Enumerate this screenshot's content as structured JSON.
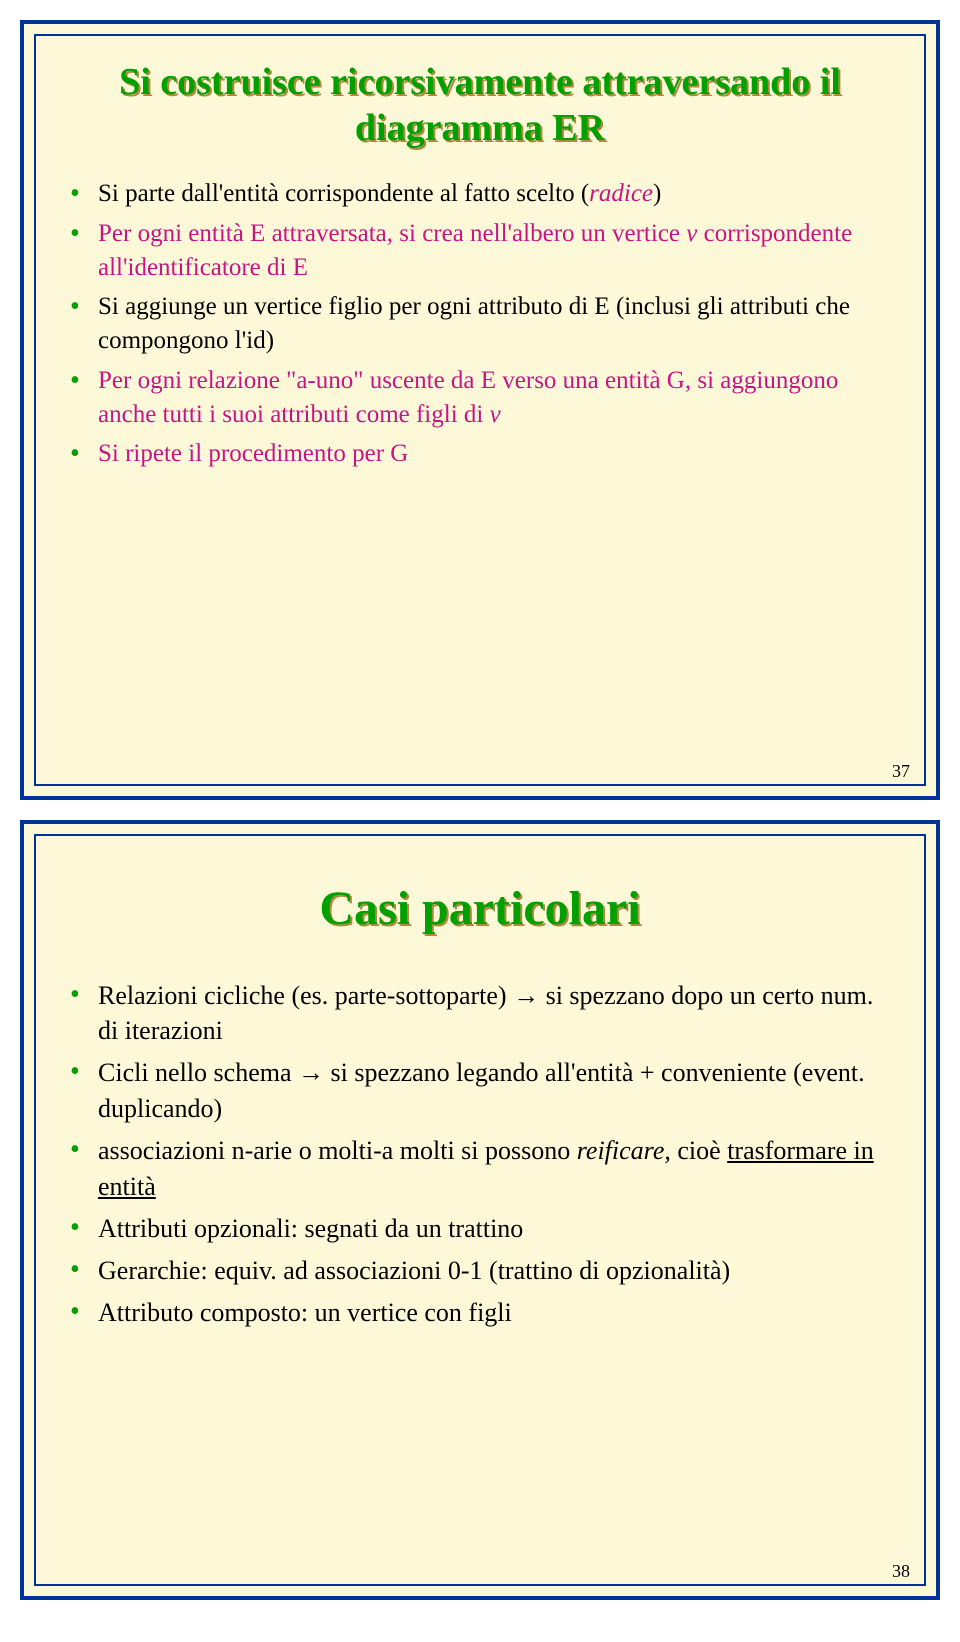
{
  "slide1": {
    "title": "Si costruisce ricorsivamente attraversando il diagramma ER",
    "b1_a": "Si parte dall'entità corrispondente al fatto scelto (",
    "b1_b": "radice",
    "b1_c": ")",
    "b2_a": "Per ogni entità E attraversata, si crea nell'albero un vertice ",
    "b2_b": "v",
    "b2_c": " corrispondente all'identificatore di E",
    "b3_a": "Si aggiunge un vertice figlio per ogni attributo di E (inclusi gli attributi che compongono l'id)",
    "b4_a": "Per ogni relazione \"a-uno\" uscente da E verso una entità G, si aggiungono anche tutti i suoi attributi come figli di ",
    "b4_b": "v",
    "b5_a": "Si ripete il procedimento per G",
    "page": "37"
  },
  "slide2": {
    "title": "Casi particolari",
    "b1_a": "Relazioni cicliche (es. parte-sottoparte) ",
    "arrow": "→",
    "b1_b": " si spezzano dopo un certo num. di iterazioni",
    "b2_a": "Cicli nello schema ",
    "b2_b": " si spezzano legando all'entità + conveniente (event. duplicando)",
    "b3_a": "associazioni n-arie o molti-a molti si possono ",
    "b3_b": "reificare,",
    "b3_c": " cioè ",
    "b3_d": "trasformare in entità",
    "b4_a": "Attributi opzionali: segnati da un trattino",
    "b5_a": "Gerarchie: equiv. ad associazioni 0-1 (trattino di opzionalità)",
    "b6_a": "Attributo composto: un vertice con figli",
    "page": "38"
  }
}
